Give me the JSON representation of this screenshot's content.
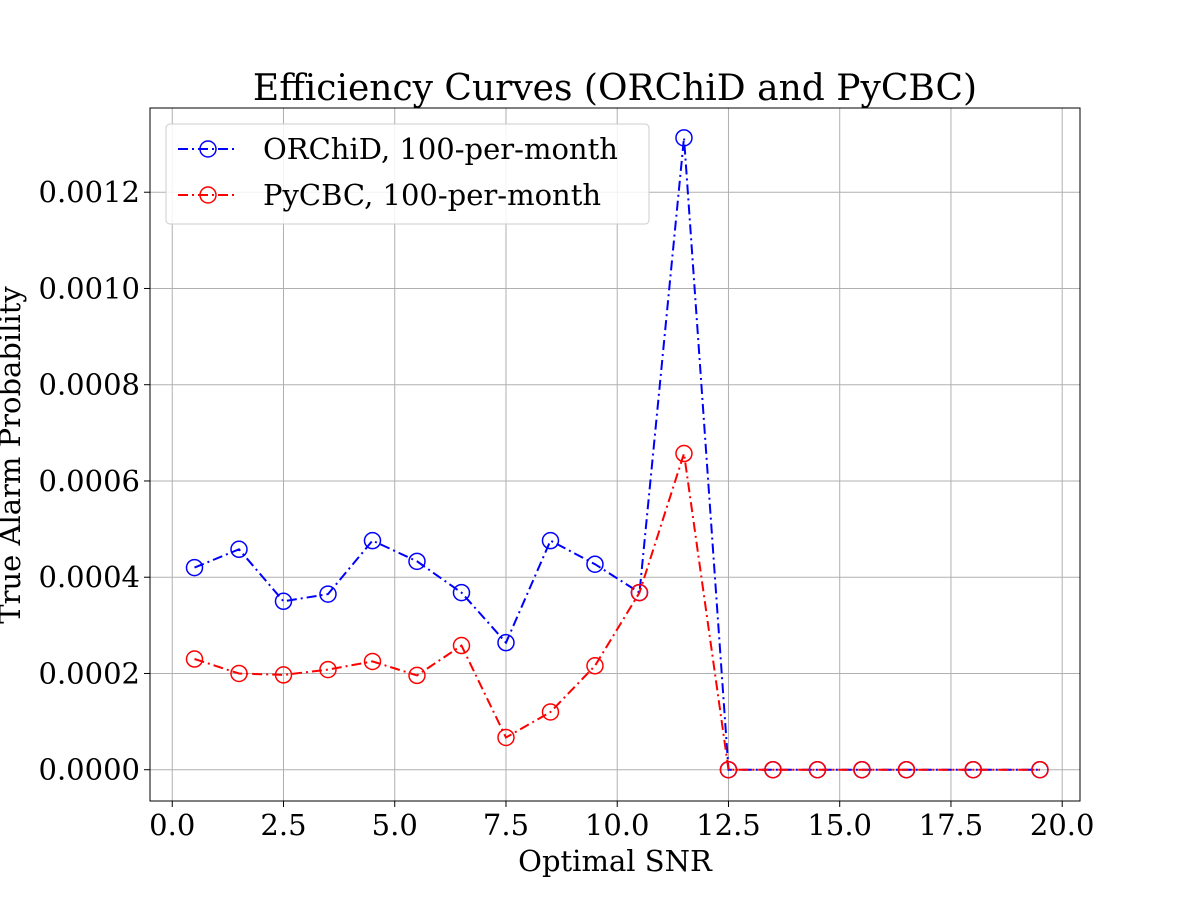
{
  "chart_data": {
    "type": "line",
    "title": "Efficiency Curves (ORChiD and PyCBC)",
    "xlabel": "Optimal SNR",
    "ylabel": "True Alarm Probability",
    "xlim": [
      -0.5,
      20.4
    ],
    "ylim": [
      -6.5e-05,
      0.001375
    ],
    "xticks": [
      0.0,
      2.5,
      5.0,
      7.5,
      10.0,
      12.5,
      15.0,
      17.5,
      20.0
    ],
    "xtick_labels": [
      "0.0",
      "2.5",
      "5.0",
      "7.5",
      "10.0",
      "12.5",
      "15.0",
      "17.5",
      "20.0"
    ],
    "yticks": [
      0.0,
      0.0002,
      0.0004,
      0.0006,
      0.0008,
      0.001,
      0.0012
    ],
    "ytick_labels": [
      "0.0000",
      "0.0002",
      "0.0004",
      "0.0006",
      "0.0008",
      "0.0010",
      "0.0012"
    ],
    "grid": true,
    "legend_position": "upper-left",
    "x": [
      0.5,
      1.5,
      2.5,
      3.5,
      4.5,
      5.5,
      6.5,
      7.5,
      8.5,
      9.5,
      10.5,
      11.5,
      12.5,
      13.5,
      14.5,
      15.5,
      16.5,
      18.0,
      19.5
    ],
    "series": [
      {
        "name": "ORChiD, 100-per-month",
        "color": "#0000ff",
        "values": [
          0.00042,
          0.000458,
          0.00035,
          0.000365,
          0.000476,
          0.000433,
          0.000368,
          0.000264,
          0.000476,
          0.000427,
          0.000368,
          0.001313,
          0.0,
          0.0,
          0.0,
          0.0,
          0.0,
          0.0,
          0.0
        ]
      },
      {
        "name": "PyCBC, 100-per-month",
        "color": "#ff0000",
        "values": [
          0.00023,
          0.0002,
          0.000197,
          0.000208,
          0.000225,
          0.000196,
          0.000258,
          6.7e-05,
          0.00012,
          0.000216,
          0.000368,
          0.000657,
          0.0,
          0.0,
          0.0,
          0.0,
          0.0,
          0.0,
          0.0
        ]
      }
    ]
  }
}
